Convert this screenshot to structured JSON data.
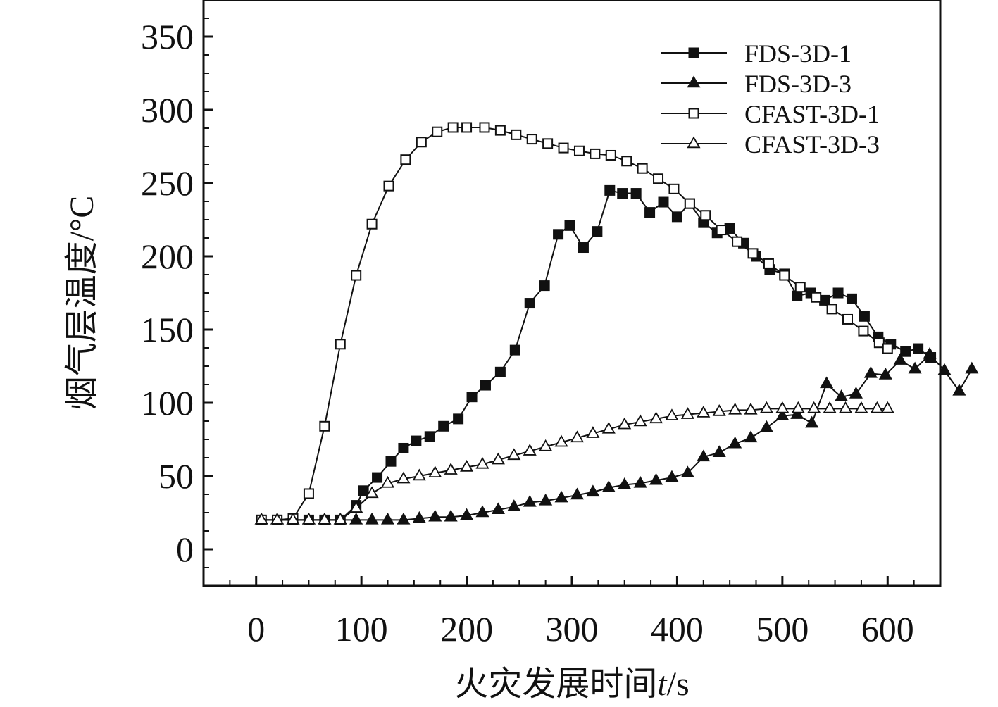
{
  "chart_data": {
    "type": "line",
    "title": "",
    "xlabel_main": "火灾发展时间",
    "xlabel_var": "t",
    "xlabel_unit": "/s",
    "ylabel": "烟气层温度/°C",
    "xlim": [
      -50,
      650
    ],
    "ylim": [
      -25,
      375
    ],
    "xticks": [
      0,
      100,
      200,
      300,
      400,
      500,
      600
    ],
    "yticks": [
      0,
      50,
      100,
      150,
      200,
      250,
      300,
      350
    ],
    "legend_position": "top-right",
    "series": [
      {
        "name": "FDS-3D-1",
        "marker": "square-filled",
        "points": [
          [
            5,
            20
          ],
          [
            20,
            20
          ],
          [
            35,
            20
          ],
          [
            50,
            20
          ],
          [
            65,
            20
          ],
          [
            80,
            20
          ],
          [
            95,
            30
          ],
          [
            102,
            40
          ],
          [
            115,
            49
          ],
          [
            128,
            60
          ],
          [
            140,
            69
          ],
          [
            152,
            74
          ],
          [
            165,
            77
          ],
          [
            178,
            84
          ],
          [
            192,
            89
          ],
          [
            205,
            104
          ],
          [
            218,
            112
          ],
          [
            232,
            121
          ],
          [
            246,
            136
          ],
          [
            260,
            168
          ],
          [
            274,
            180
          ],
          [
            287,
            215
          ],
          [
            298,
            221
          ],
          [
            311,
            206
          ],
          [
            324,
            217
          ],
          [
            336,
            245
          ],
          [
            348,
            243
          ],
          [
            361,
            243
          ],
          [
            374,
            230
          ],
          [
            387,
            237
          ],
          [
            400,
            227
          ],
          [
            412,
            236
          ],
          [
            425,
            223
          ],
          [
            438,
            216
          ],
          [
            450,
            219
          ],
          [
            463,
            209
          ],
          [
            475,
            200
          ],
          [
            488,
            191
          ],
          [
            502,
            188
          ],
          [
            514,
            173
          ],
          [
            527,
            175
          ],
          [
            540,
            170
          ],
          [
            553,
            175
          ],
          [
            566,
            171
          ],
          [
            578,
            159
          ],
          [
            591,
            145
          ],
          [
            603,
            140
          ],
          [
            617,
            135
          ],
          [
            629,
            137
          ],
          [
            641,
            131
          ]
        ]
      },
      {
        "name": "FDS-3D-3",
        "marker": "triangle-filled",
        "points": [
          [
            5,
            20
          ],
          [
            20,
            20
          ],
          [
            35,
            20
          ],
          [
            50,
            20
          ],
          [
            65,
            20
          ],
          [
            80,
            20
          ],
          [
            95,
            20
          ],
          [
            110,
            20
          ],
          [
            125,
            20
          ],
          [
            140,
            20
          ],
          [
            155,
            21
          ],
          [
            170,
            22
          ],
          [
            185,
            22
          ],
          [
            200,
            23
          ],
          [
            215,
            25
          ],
          [
            230,
            27
          ],
          [
            245,
            29
          ],
          [
            260,
            32
          ],
          [
            275,
            33
          ],
          [
            290,
            35
          ],
          [
            305,
            37
          ],
          [
            320,
            39
          ],
          [
            335,
            42
          ],
          [
            350,
            44
          ],
          [
            365,
            45
          ],
          [
            380,
            47
          ],
          [
            395,
            49
          ],
          [
            410,
            52
          ],
          [
            425,
            63
          ],
          [
            440,
            66
          ],
          [
            455,
            72
          ],
          [
            470,
            76
          ],
          [
            485,
            83
          ],
          [
            500,
            91
          ],
          [
            514,
            92
          ],
          [
            528,
            86
          ],
          [
            542,
            113
          ],
          [
            556,
            104
          ],
          [
            570,
            106
          ],
          [
            584,
            120
          ],
          [
            598,
            119
          ],
          [
            612,
            129
          ],
          [
            626,
            123
          ],
          [
            640,
            133
          ],
          [
            654,
            122
          ],
          [
            668,
            108
          ],
          [
            680,
            123
          ]
        ]
      },
      {
        "name": "CFAST-3D-1",
        "marker": "square-open",
        "points": [
          [
            5,
            20
          ],
          [
            20,
            20
          ],
          [
            35,
            21
          ],
          [
            50,
            38
          ],
          [
            65,
            84
          ],
          [
            80,
            140
          ],
          [
            95,
            187
          ],
          [
            110,
            222
          ],
          [
            126,
            248
          ],
          [
            142,
            266
          ],
          [
            157,
            278
          ],
          [
            172,
            285
          ],
          [
            187,
            288
          ],
          [
            200,
            288
          ],
          [
            217,
            288
          ],
          [
            232,
            286
          ],
          [
            247,
            283
          ],
          [
            262,
            280
          ],
          [
            277,
            277
          ],
          [
            292,
            274
          ],
          [
            307,
            272
          ],
          [
            322,
            270
          ],
          [
            337,
            269
          ],
          [
            352,
            265
          ],
          [
            367,
            260
          ],
          [
            382,
            253
          ],
          [
            397,
            246
          ],
          [
            412,
            236
          ],
          [
            427,
            228
          ],
          [
            442,
            218
          ],
          [
            457,
            210
          ],
          [
            472,
            202
          ],
          [
            487,
            195
          ],
          [
            502,
            187
          ],
          [
            517,
            179
          ],
          [
            532,
            172
          ],
          [
            547,
            164
          ],
          [
            562,
            157
          ],
          [
            577,
            149
          ],
          [
            592,
            141
          ],
          [
            600,
            137
          ]
        ]
      },
      {
        "name": "CFAST-3D-3",
        "marker": "triangle-open",
        "points": [
          [
            5,
            20
          ],
          [
            20,
            20
          ],
          [
            35,
            20
          ],
          [
            50,
            20
          ],
          [
            65,
            20
          ],
          [
            80,
            20
          ],
          [
            95,
            28
          ],
          [
            110,
            38
          ],
          [
            125,
            45
          ],
          [
            140,
            48
          ],
          [
            155,
            50
          ],
          [
            170,
            52
          ],
          [
            185,
            54
          ],
          [
            200,
            56
          ],
          [
            215,
            58
          ],
          [
            230,
            61
          ],
          [
            245,
            64
          ],
          [
            260,
            67
          ],
          [
            275,
            70
          ],
          [
            290,
            73
          ],
          [
            305,
            76
          ],
          [
            320,
            79
          ],
          [
            335,
            82
          ],
          [
            350,
            85
          ],
          [
            365,
            87
          ],
          [
            380,
            89
          ],
          [
            395,
            91
          ],
          [
            410,
            92
          ],
          [
            425,
            93
          ],
          [
            440,
            94
          ],
          [
            455,
            95
          ],
          [
            470,
            95
          ],
          [
            485,
            96
          ],
          [
            500,
            96
          ],
          [
            515,
            96
          ],
          [
            530,
            96
          ],
          [
            545,
            96
          ],
          [
            560,
            96
          ],
          [
            575,
            96
          ],
          [
            590,
            96
          ],
          [
            600,
            96
          ]
        ]
      }
    ]
  }
}
